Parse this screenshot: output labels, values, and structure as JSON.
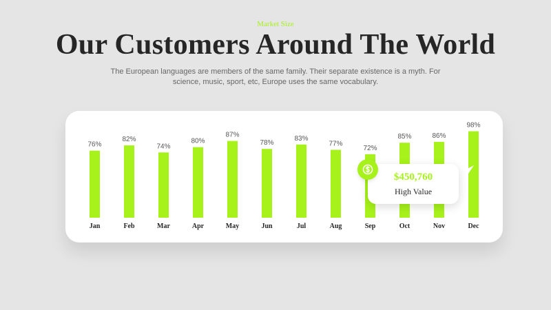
{
  "header": {
    "eyebrow": "Market Size",
    "title": "Our Customers Around The World",
    "subtitle_line1": "The European languages are members of the same family.  Their separate existence is a myth. For",
    "subtitle_line2": "science, music, sport, etc, Europe uses the same vocabulary."
  },
  "colors": {
    "accent": "#a7f21b",
    "background": "#e5e5e5",
    "card": "#ffffff",
    "text_dark": "#262626",
    "text_muted": "#666666"
  },
  "chart_data": {
    "type": "bar",
    "categories": [
      "Jan",
      "Feb",
      "Mar",
      "Apr",
      "May",
      "Jun",
      "Jul",
      "Aug",
      "Sep",
      "Oct",
      "Nov",
      "Dec"
    ],
    "values": [
      76,
      82,
      74,
      80,
      87,
      78,
      83,
      77,
      72,
      85,
      86,
      98
    ],
    "value_suffix": "%",
    "ylim": [
      0,
      100
    ],
    "grid": false,
    "legend": "none"
  },
  "tooltip": {
    "value": "$450,760",
    "label": "High Value",
    "icon": "dollar-coin-icon"
  }
}
